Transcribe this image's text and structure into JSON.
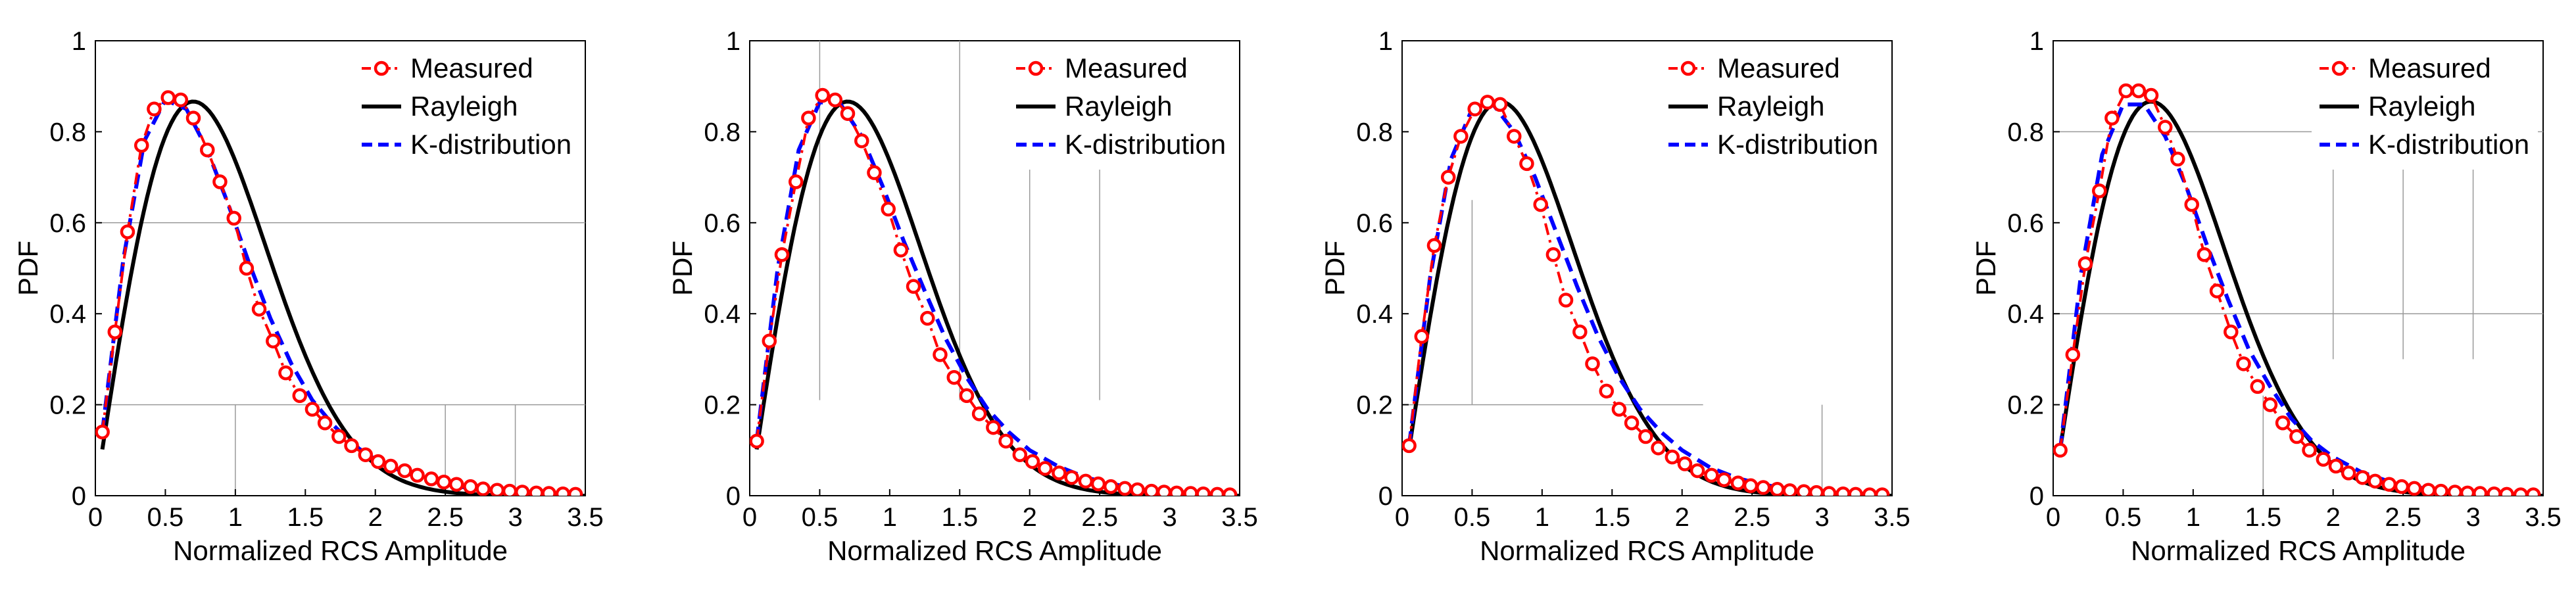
{
  "figure": {
    "panel_count": 4
  },
  "chart_data": [
    {
      "type": "line",
      "title": "",
      "xlabel": "Normalized RCS Amplitude",
      "ylabel": "PDF",
      "xlim": [
        0,
        3.5
      ],
      "ylim": [
        0,
        1
      ],
      "xticks": [
        0,
        0.5,
        1,
        1.5,
        2,
        2.5,
        3,
        3.5
      ],
      "xtick_labels": [
        "0",
        "0.5",
        "1",
        "1.5",
        "2",
        "2.5",
        "3",
        "3.5"
      ],
      "yticks": [
        0,
        0.2,
        0.4,
        0.6,
        0.8,
        1
      ],
      "ytick_labels": [
        "0",
        "0.2",
        "0.4",
        "0.6",
        "0.8",
        "1"
      ],
      "legend": {
        "position": "top-right",
        "entries": [
          "Measured",
          "Rayleigh",
          "K-distribution"
        ]
      },
      "series": [
        {
          "name": "Measured",
          "color": "#ff0000",
          "style": "dash-dot-circle",
          "x": [
            0.05,
            0.14,
            0.23,
            0.33,
            0.42,
            0.52,
            0.61,
            0.7,
            0.8,
            0.89,
            0.99,
            1.08,
            1.17,
            1.27,
            1.36,
            1.46,
            1.55,
            1.64,
            1.74,
            1.83,
            1.93,
            2.02,
            2.11,
            2.21,
            2.3,
            2.4,
            2.49,
            2.58,
            2.68,
            2.77,
            2.87,
            2.96,
            3.05,
            3.15,
            3.24,
            3.34,
            3.43
          ],
          "y": [
            0.14,
            0.36,
            0.58,
            0.77,
            0.85,
            0.875,
            0.87,
            0.83,
            0.76,
            0.69,
            0.61,
            0.5,
            0.41,
            0.34,
            0.27,
            0.22,
            0.19,
            0.16,
            0.13,
            0.11,
            0.09,
            0.075,
            0.065,
            0.055,
            0.045,
            0.037,
            0.03,
            0.025,
            0.02,
            0.015,
            0.012,
            0.01,
            0.008,
            0.006,
            0.005,
            0.004,
            0.003
          ]
        },
        {
          "name": "Rayleigh",
          "color": "#000000",
          "style": "solid",
          "sigma": 0.7
        },
        {
          "name": "K-distribution",
          "color": "#0000ff",
          "style": "dashed",
          "x": [
            0.05,
            0.2,
            0.35,
            0.5,
            0.65,
            0.8,
            0.95,
            1.1,
            1.25,
            1.4,
            1.55,
            1.7,
            1.85,
            2.0,
            2.2,
            2.4,
            2.6,
            2.8,
            3.0,
            3.2,
            3.4
          ],
          "y": [
            0.14,
            0.52,
            0.78,
            0.87,
            0.85,
            0.76,
            0.64,
            0.51,
            0.39,
            0.29,
            0.21,
            0.155,
            0.11,
            0.08,
            0.052,
            0.032,
            0.02,
            0.012,
            0.007,
            0.004,
            0.002
          ]
        }
      ]
    },
    {
      "type": "line",
      "title": "",
      "xlabel": "Normalized RCS Amplitude",
      "ylabel": "PDF",
      "xlim": [
        0,
        3.5
      ],
      "ylim": [
        0,
        1
      ],
      "xticks": [
        0,
        0.5,
        1,
        1.5,
        2,
        2.5,
        3,
        3.5
      ],
      "xtick_labels": [
        "0",
        "0.5",
        "1",
        "1.5",
        "2",
        "2.5",
        "3",
        "3.5"
      ],
      "yticks": [
        0,
        0.2,
        0.4,
        0.6,
        0.8,
        1
      ],
      "ytick_labels": [
        "0",
        "0.2",
        "0.4",
        "0.6",
        "0.8",
        "1"
      ],
      "legend": {
        "position": "top-right",
        "entries": [
          "Measured",
          "Rayleigh",
          "K-distribution"
        ]
      },
      "series": [
        {
          "name": "Measured",
          "color": "#ff0000",
          "style": "dash-dot-circle",
          "x": [
            0.05,
            0.14,
            0.23,
            0.33,
            0.42,
            0.52,
            0.61,
            0.7,
            0.8,
            0.89,
            0.99,
            1.08,
            1.17,
            1.27,
            1.36,
            1.46,
            1.55,
            1.64,
            1.74,
            1.83,
            1.93,
            2.02,
            2.11,
            2.21,
            2.3,
            2.4,
            2.49,
            2.58,
            2.68,
            2.77,
            2.87,
            2.96,
            3.05,
            3.15,
            3.24,
            3.34,
            3.43
          ],
          "y": [
            0.12,
            0.34,
            0.53,
            0.69,
            0.83,
            0.88,
            0.87,
            0.84,
            0.78,
            0.71,
            0.63,
            0.54,
            0.46,
            0.39,
            0.31,
            0.26,
            0.22,
            0.18,
            0.15,
            0.12,
            0.09,
            0.075,
            0.06,
            0.05,
            0.04,
            0.032,
            0.026,
            0.02,
            0.016,
            0.013,
            0.01,
            0.008,
            0.006,
            0.005,
            0.004,
            0.003,
            0.002
          ]
        },
        {
          "name": "Rayleigh",
          "color": "#000000",
          "style": "solid",
          "sigma": 0.7
        },
        {
          "name": "K-distribution",
          "color": "#0000ff",
          "style": "dashed",
          "x": [
            0.05,
            0.2,
            0.35,
            0.5,
            0.65,
            0.8,
            0.95,
            1.1,
            1.25,
            1.4,
            1.55,
            1.7,
            1.85,
            2.0,
            2.2,
            2.4,
            2.6,
            2.8,
            3.0,
            3.2,
            3.4
          ],
          "y": [
            0.12,
            0.5,
            0.76,
            0.865,
            0.86,
            0.79,
            0.68,
            0.56,
            0.45,
            0.345,
            0.26,
            0.19,
            0.14,
            0.1,
            0.065,
            0.04,
            0.025,
            0.015,
            0.009,
            0.005,
            0.003
          ]
        }
      ]
    },
    {
      "type": "line",
      "title": "",
      "xlabel": "Normalized RCS Amplitude",
      "ylabel": "PDF",
      "xlim": [
        0,
        3.5
      ],
      "ylim": [
        0,
        1
      ],
      "xticks": [
        0,
        0.5,
        1,
        1.5,
        2,
        2.5,
        3,
        3.5
      ],
      "xtick_labels": [
        "0",
        "0.5",
        "1",
        "1.5",
        "2",
        "2.5",
        "3",
        "3.5"
      ],
      "yticks": [
        0,
        0.2,
        0.4,
        0.6,
        0.8,
        1
      ],
      "ytick_labels": [
        "0",
        "0.2",
        "0.4",
        "0.6",
        "0.8",
        "1"
      ],
      "legend": {
        "position": "top-right",
        "entries": [
          "Measured",
          "Rayleigh",
          "K-distribution"
        ]
      },
      "series": [
        {
          "name": "Measured",
          "color": "#ff0000",
          "style": "dash-dot-circle",
          "x": [
            0.05,
            0.14,
            0.23,
            0.33,
            0.42,
            0.52,
            0.61,
            0.7,
            0.8,
            0.89,
            0.99,
            1.08,
            1.17,
            1.27,
            1.36,
            1.46,
            1.55,
            1.64,
            1.74,
            1.83,
            1.93,
            2.02,
            2.11,
            2.21,
            2.3,
            2.4,
            2.49,
            2.58,
            2.68,
            2.77,
            2.87,
            2.96,
            3.05,
            3.15,
            3.24,
            3.34,
            3.43
          ],
          "y": [
            0.11,
            0.35,
            0.55,
            0.7,
            0.79,
            0.85,
            0.865,
            0.86,
            0.79,
            0.73,
            0.64,
            0.53,
            0.43,
            0.36,
            0.29,
            0.23,
            0.19,
            0.16,
            0.13,
            0.105,
            0.085,
            0.07,
            0.055,
            0.045,
            0.035,
            0.028,
            0.022,
            0.018,
            0.014,
            0.011,
            0.009,
            0.007,
            0.005,
            0.004,
            0.003,
            0.002,
            0.002
          ]
        },
        {
          "name": "Rayleigh",
          "color": "#000000",
          "style": "solid",
          "sigma": 0.7
        },
        {
          "name": "K-distribution",
          "color": "#0000ff",
          "style": "dashed",
          "x": [
            0.05,
            0.2,
            0.35,
            0.5,
            0.65,
            0.8,
            0.95,
            1.1,
            1.25,
            1.4,
            1.55,
            1.7,
            1.85,
            2.0,
            2.2,
            2.4,
            2.6,
            2.8,
            3.0,
            3.2,
            3.4
          ],
          "y": [
            0.11,
            0.48,
            0.74,
            0.85,
            0.86,
            0.8,
            0.7,
            0.58,
            0.46,
            0.35,
            0.26,
            0.19,
            0.14,
            0.1,
            0.062,
            0.038,
            0.023,
            0.014,
            0.008,
            0.005,
            0.003
          ]
        }
      ]
    },
    {
      "type": "line",
      "title": "",
      "xlabel": "Normalized RCS Amplitude",
      "ylabel": "PDF",
      "xlim": [
        0,
        3.5
      ],
      "ylim": [
        0,
        1
      ],
      "xticks": [
        0,
        0.5,
        1,
        1.5,
        2,
        2.5,
        3,
        3.5
      ],
      "xtick_labels": [
        "0",
        "0.5",
        "1",
        "1.5",
        "2",
        "2.5",
        "3",
        "3.5"
      ],
      "yticks": [
        0,
        0.2,
        0.4,
        0.6,
        0.8,
        1
      ],
      "ytick_labels": [
        "0",
        "0.2",
        "0.4",
        "0.6",
        "0.8",
        "1"
      ],
      "legend": {
        "position": "top-right",
        "entries": [
          "Measured",
          "Rayleigh",
          "K-distribution"
        ]
      },
      "series": [
        {
          "name": "Measured",
          "color": "#ff0000",
          "style": "dash-dot-circle",
          "x": [
            0.05,
            0.14,
            0.23,
            0.33,
            0.42,
            0.52,
            0.61,
            0.7,
            0.8,
            0.89,
            0.99,
            1.08,
            1.17,
            1.27,
            1.36,
            1.46,
            1.55,
            1.64,
            1.74,
            1.83,
            1.93,
            2.02,
            2.11,
            2.21,
            2.3,
            2.4,
            2.49,
            2.58,
            2.68,
            2.77,
            2.87,
            2.96,
            3.05,
            3.15,
            3.24,
            3.34,
            3.43
          ],
          "y": [
            0.1,
            0.31,
            0.51,
            0.67,
            0.83,
            0.89,
            0.89,
            0.88,
            0.81,
            0.74,
            0.64,
            0.53,
            0.45,
            0.36,
            0.29,
            0.24,
            0.2,
            0.16,
            0.13,
            0.1,
            0.08,
            0.065,
            0.05,
            0.04,
            0.032,
            0.025,
            0.02,
            0.016,
            0.012,
            0.01,
            0.008,
            0.006,
            0.005,
            0.004,
            0.003,
            0.002,
            0.002
          ]
        },
        {
          "name": "Rayleigh",
          "color": "#000000",
          "style": "solid",
          "sigma": 0.7
        },
        {
          "name": "K-distribution",
          "color": "#0000ff",
          "style": "dashed",
          "x": [
            0.05,
            0.2,
            0.35,
            0.5,
            0.65,
            0.8,
            0.95,
            1.1,
            1.25,
            1.4,
            1.55,
            1.7,
            1.85,
            2.0,
            2.2,
            2.4,
            2.6,
            2.8,
            3.0,
            3.2,
            3.4
          ],
          "y": [
            0.1,
            0.49,
            0.75,
            0.86,
            0.86,
            0.79,
            0.68,
            0.55,
            0.43,
            0.32,
            0.24,
            0.17,
            0.12,
            0.085,
            0.052,
            0.031,
            0.018,
            0.011,
            0.006,
            0.004,
            0.002
          ]
        }
      ]
    }
  ]
}
